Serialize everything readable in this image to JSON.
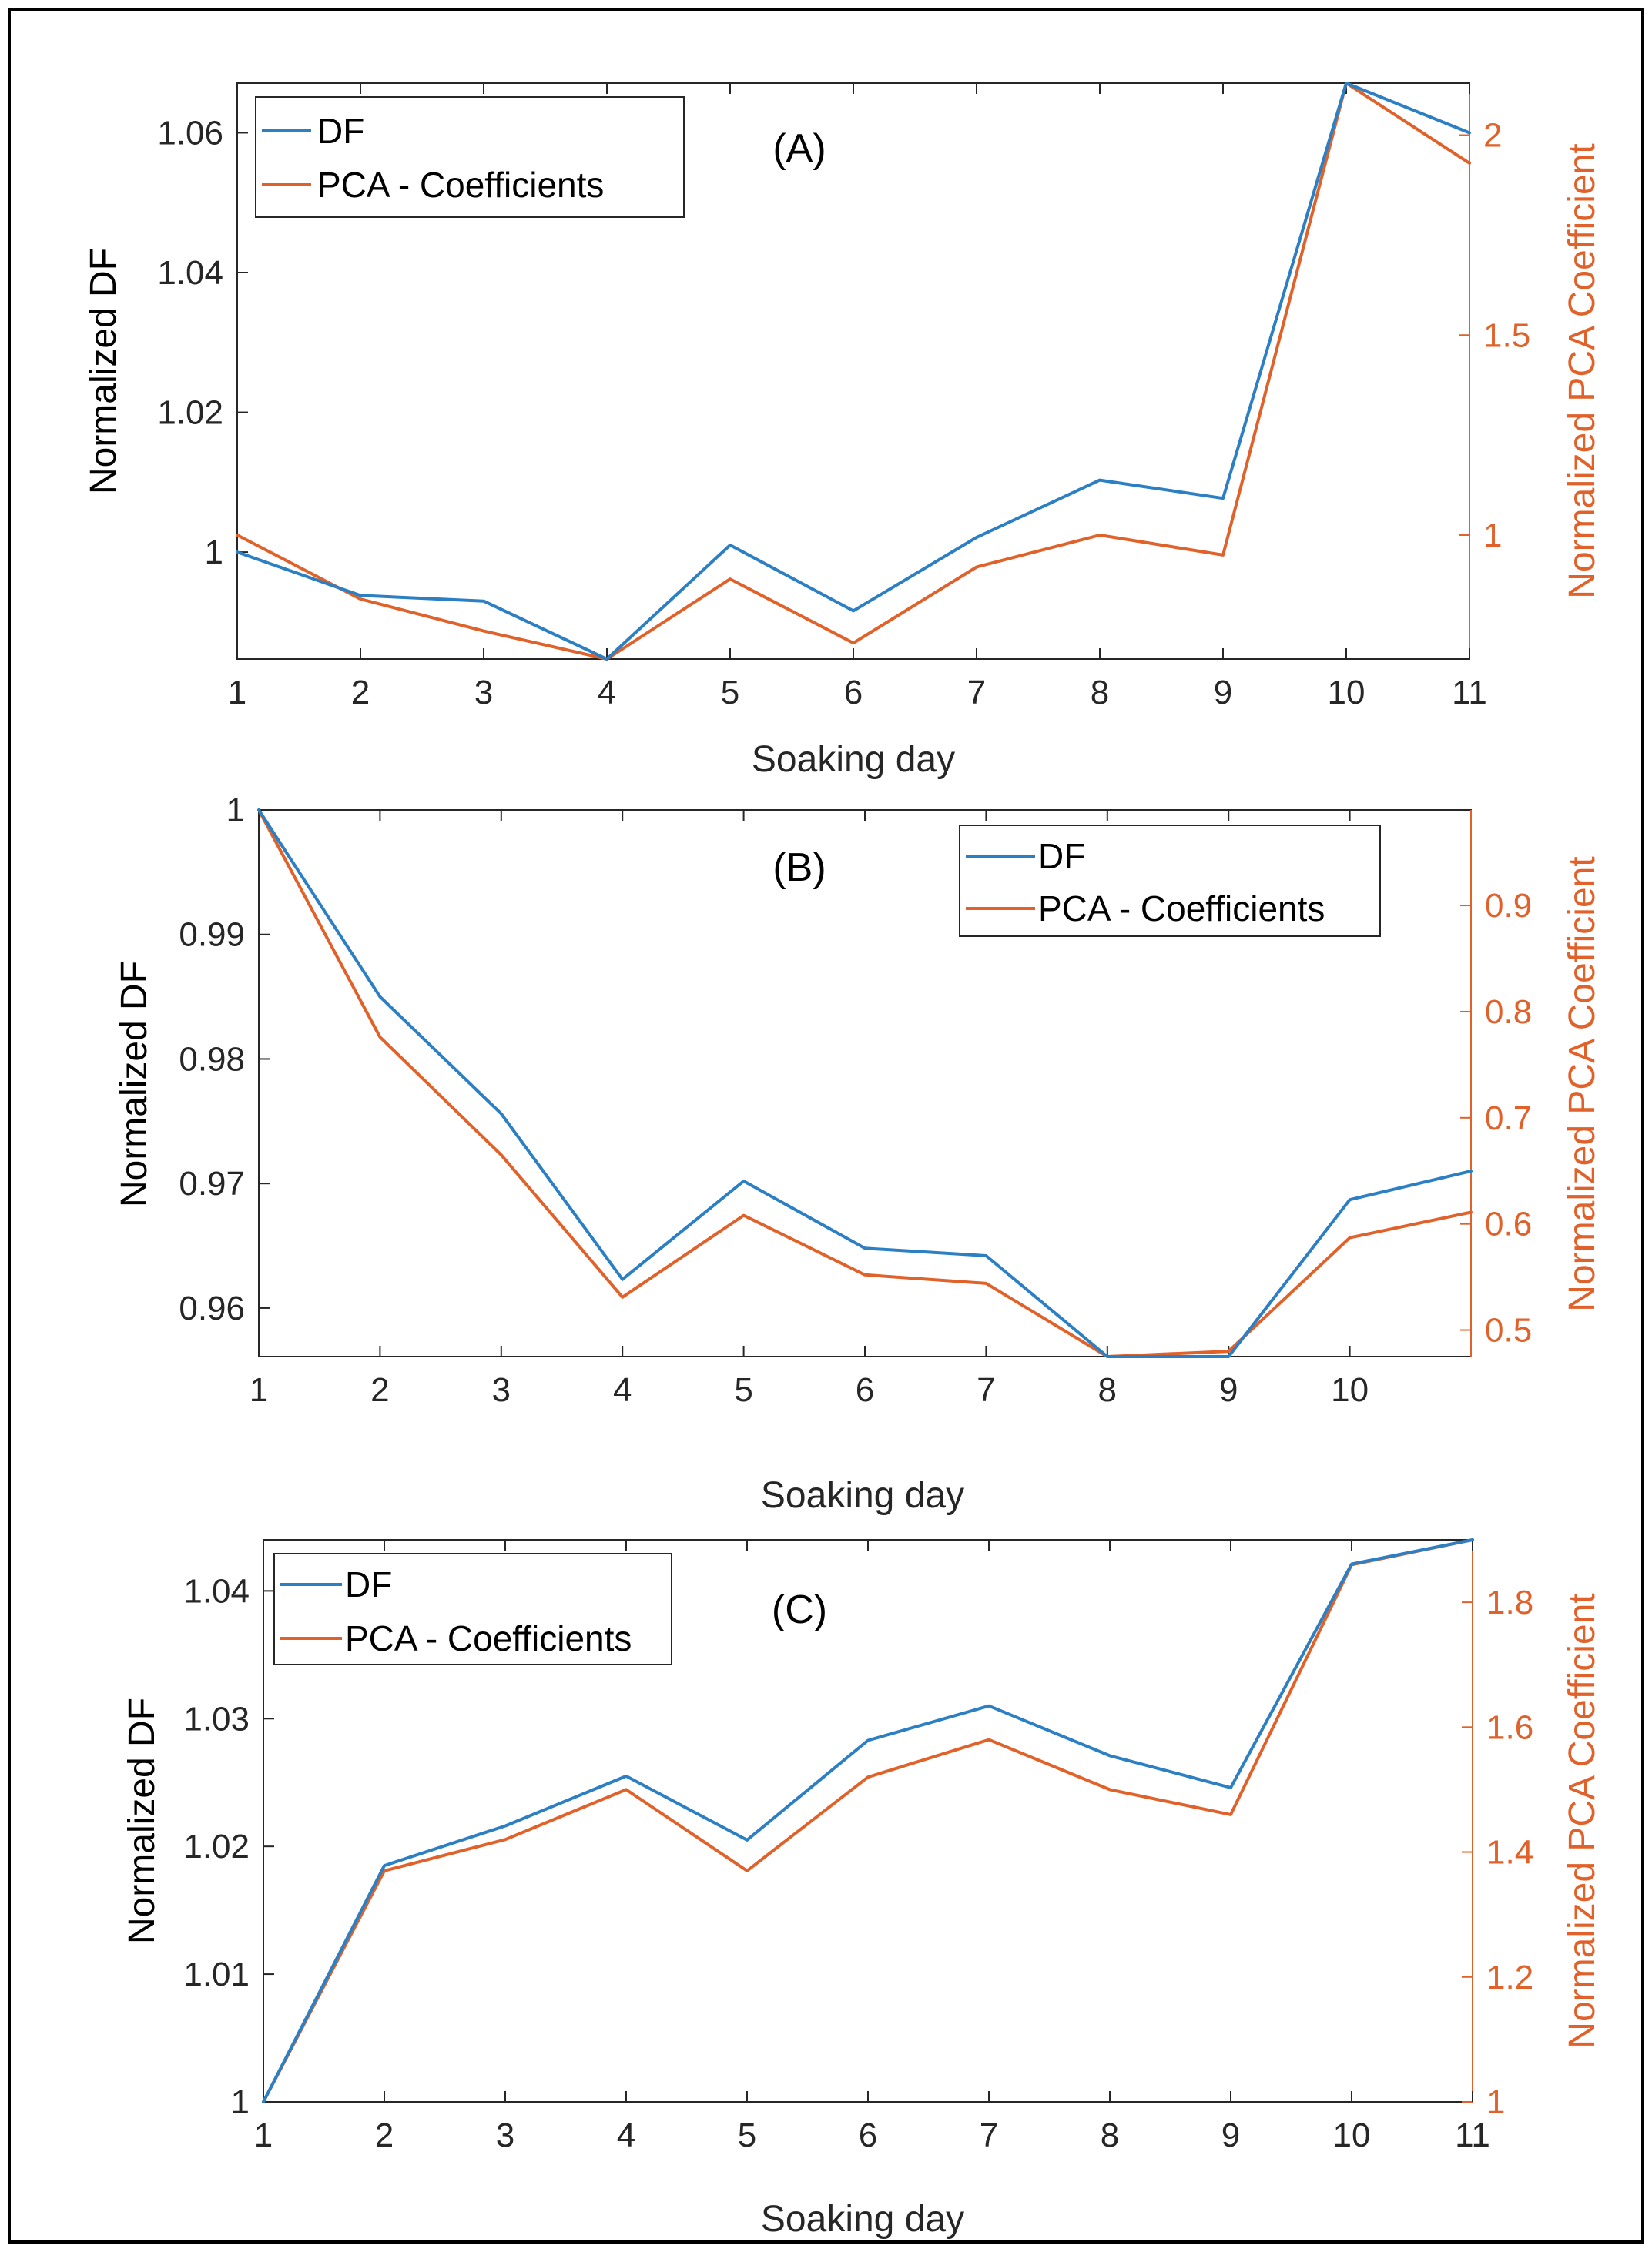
{
  "chart_data": [
    {
      "type": "line",
      "panel_label": "(A)",
      "xlabel": "Soaking day",
      "ylabel_left": "Normalized DF",
      "ylabel_right": "Normalized PCA Coefficient",
      "x": [
        1,
        2,
        3,
        4,
        5,
        6,
        7,
        8,
        9,
        10,
        11
      ],
      "xlim": [
        1,
        11
      ],
      "xticks": [
        "1",
        "2",
        "3",
        "4",
        "5",
        "6",
        "7",
        "8",
        "9",
        "10",
        "11"
      ],
      "ylim_left": [
        0.9847,
        1.0671
      ],
      "yticks_left": [
        "1",
        "1.02",
        "1.04",
        "1.06"
      ],
      "ylim_right": [
        0.69,
        2.13
      ],
      "yticks_right": [
        "1",
        "1.5",
        "2"
      ],
      "legend": {
        "position": "top-left",
        "entries": [
          "DF",
          "PCA - Coefficients"
        ]
      },
      "series": [
        {
          "name": "DF",
          "axis": "left",
          "color": "#2c7fc3",
          "values": [
            1.0,
            0.9938,
            0.993,
            0.9847,
            1.001,
            0.9916,
            1.0021,
            1.0103,
            1.0077,
            1.0671,
            1.06
          ]
        },
        {
          "name": "PCA - Coefficients",
          "axis": "right",
          "color": "#e0622a",
          "values": [
            1.0,
            0.84,
            0.76,
            0.69,
            0.89,
            0.73,
            0.92,
            1.0,
            0.95,
            2.13,
            1.93
          ]
        }
      ]
    },
    {
      "type": "line",
      "panel_label": "(B)",
      "xlabel": "Soaking day",
      "ylabel_left": "Normalized DF",
      "ylabel_right": "Normalized PCA Coefficient",
      "x": [
        1,
        2,
        3,
        4,
        5,
        6,
        7,
        8,
        9,
        10,
        11
      ],
      "xlim": [
        1,
        11
      ],
      "xticks": [
        "1",
        "2",
        "3",
        "4",
        "5",
        "6",
        "7",
        "8",
        "9",
        "10"
      ],
      "ylim_left": [
        0.9561,
        1.0
      ],
      "yticks_left": [
        "0.96",
        "0.97",
        "0.98",
        "0.99",
        "1"
      ],
      "ylim_right": [
        0.475,
        0.99
      ],
      "yticks_right": [
        "0.5",
        "0.6",
        "0.7",
        "0.8",
        "0.9"
      ],
      "legend": {
        "position": "top-right",
        "entries": [
          "DF",
          "PCA - Coefficients"
        ]
      },
      "series": [
        {
          "name": "DF",
          "axis": "left",
          "color": "#2c7fc3",
          "values": [
            1.0,
            0.985,
            0.9756,
            0.9623,
            0.9702,
            0.9648,
            0.9642,
            0.9561,
            0.9561,
            0.9687,
            0.971
          ]
        },
        {
          "name": "PCA - Coefficients",
          "axis": "right",
          "color": "#e0622a",
          "values": [
            0.99,
            0.776,
            0.665,
            0.531,
            0.608,
            0.552,
            0.544,
            0.475,
            0.48,
            0.587,
            0.611
          ]
        }
      ]
    },
    {
      "type": "line",
      "panel_label": "(C)",
      "xlabel": "Soaking day",
      "ylabel_left": "Normalized DF",
      "ylabel_right": "Normalized PCA Coefficient",
      "x": [
        1,
        2,
        3,
        4,
        5,
        6,
        7,
        8,
        9,
        10,
        11
      ],
      "xlim": [
        1,
        11
      ],
      "xticks": [
        "1",
        "2",
        "3",
        "4",
        "5",
        "6",
        "7",
        "8",
        "9",
        "10",
        "11"
      ],
      "ylim_left": [
        1.0,
        1.044
      ],
      "yticks_left": [
        "1",
        "1.01",
        "1.02",
        "1.03",
        "1.04"
      ],
      "ylim_right": [
        1.0,
        1.9
      ],
      "yticks_right": [
        "1",
        "1.2",
        "1.4",
        "1.6",
        "1.8"
      ],
      "legend": {
        "position": "top-left",
        "entries": [
          "DF",
          "PCA - Coefficients"
        ]
      },
      "series": [
        {
          "name": "DF",
          "axis": "left",
          "color": "#2c7fc3",
          "values": [
            1.0,
            1.0185,
            1.0216,
            1.0255,
            1.0205,
            1.0283,
            1.031,
            1.0271,
            1.0246,
            1.0421,
            1.044
          ]
        },
        {
          "name": "PCA - Coefficients",
          "axis": "right",
          "color": "#e0622a",
          "values": [
            1.0,
            1.37,
            1.42,
            1.5,
            1.37,
            1.52,
            1.58,
            1.5,
            1.46,
            1.86,
            1.9
          ]
        }
      ]
    }
  ]
}
